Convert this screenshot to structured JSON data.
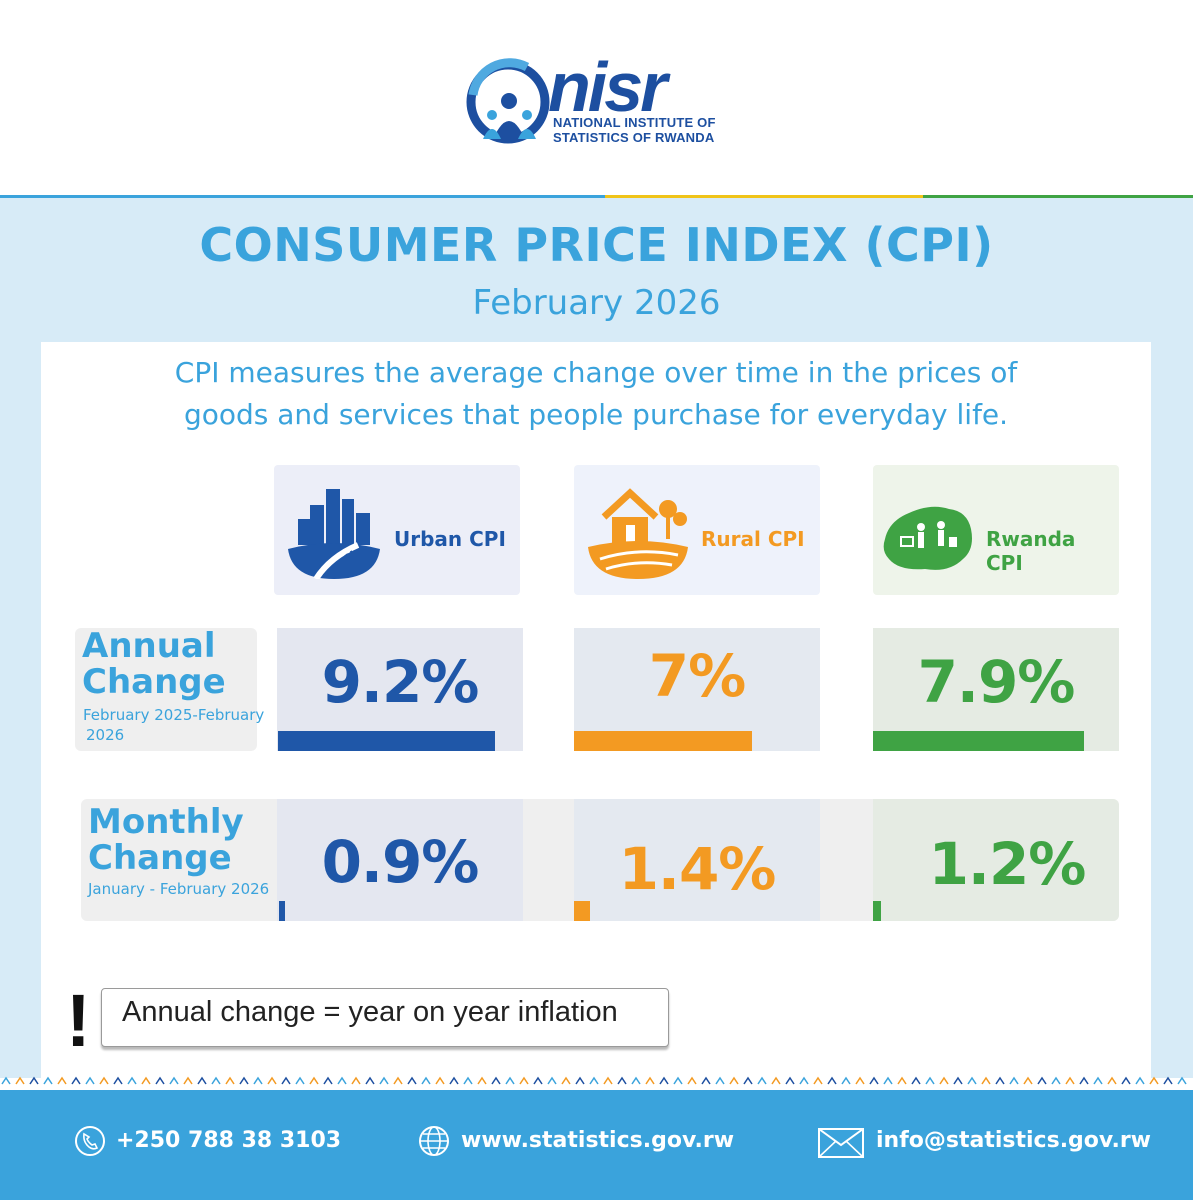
{
  "header": {
    "logo_word": "nisr",
    "logo_sub_line1": "NATIONAL INSTITUTE OF",
    "logo_sub_line2": "STATISTICS OF RWANDA"
  },
  "title": "CONSUMER PRICE INDEX (CPI)",
  "period": "February 2026",
  "description_line1": "CPI measures the average change over time in the prices of",
  "description_line2": "goods and services that people purchase for everyday life.",
  "categories": [
    {
      "label": "Urban CPI",
      "color": "#1f57a8",
      "icon": "city-icon"
    },
    {
      "label": "Rural CPI",
      "color": "#f39a22",
      "icon": "rural-house-icon"
    },
    {
      "label": "Rwanda CPI",
      "color": "#3fa344",
      "icon": "rwanda-map-shoppers-icon"
    }
  ],
  "annual": {
    "title_line1": "Annual",
    "title_line2": "Change",
    "sub_line1": "February 2025-February",
    "sub_line2": "2026",
    "values": [
      "9.2%",
      "7%",
      "7.9%"
    ]
  },
  "monthly": {
    "title_line1": "Monthly",
    "title_line2": "Change",
    "sub": "January - February 2026",
    "values": [
      "0.9%",
      "1.4%",
      "1.2%"
    ]
  },
  "note": {
    "mark": "!",
    "text": "Annual change = year on year inflation"
  },
  "footer": {
    "phone": "+250 788 38 3103",
    "website": "www.statistics.gov.rw",
    "email": "info@statistics.gov.rw"
  },
  "colors": {
    "brand_blue": "#3aa3dc",
    "dark_blue": "#1d4fa0",
    "urban": "#1f57a8",
    "rural": "#f39a22",
    "rwanda": "#3fa344"
  }
}
